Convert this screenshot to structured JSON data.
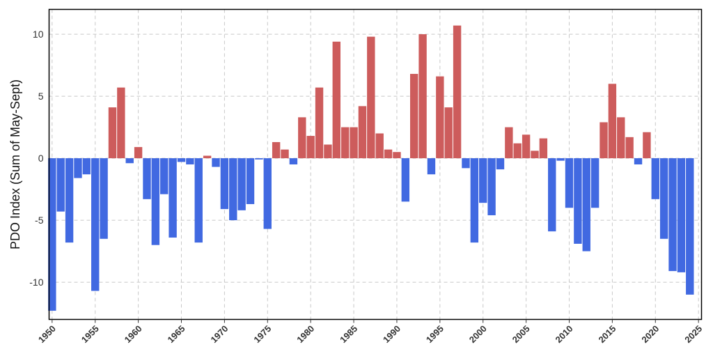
{
  "chart_data": {
    "type": "bar",
    "title": "",
    "xlabel": "",
    "ylabel": "PDO Index (Sum of May-Sept)",
    "xlim": [
      1950,
      2025
    ],
    "ylim": [
      -13,
      12
    ],
    "grid": true,
    "x_ticks": [
      "1950",
      "1955",
      "1960",
      "1965",
      "1970",
      "1975",
      "1980",
      "1985",
      "1990",
      "1995",
      "2000",
      "2005",
      "2010",
      "2015",
      "2020",
      "2025"
    ],
    "y_ticks": [
      "10",
      "5",
      "0",
      "-5",
      "-10"
    ],
    "colors": {
      "positive": "#cd5c5c",
      "negative": "#4169e1"
    },
    "categories": [
      1950,
      1951,
      1952,
      1953,
      1954,
      1955,
      1956,
      1957,
      1958,
      1959,
      1960,
      1961,
      1962,
      1963,
      1964,
      1965,
      1966,
      1967,
      1968,
      1969,
      1970,
      1971,
      1972,
      1973,
      1974,
      1975,
      1976,
      1977,
      1978,
      1979,
      1980,
      1981,
      1982,
      1983,
      1984,
      1985,
      1986,
      1987,
      1988,
      1989,
      1990,
      1991,
      1992,
      1993,
      1994,
      1995,
      1996,
      1997,
      1998,
      1999,
      2000,
      2001,
      2002,
      2003,
      2004,
      2005,
      2006,
      2007,
      2008,
      2009,
      2010,
      2011,
      2012,
      2013,
      2014,
      2015,
      2016,
      2017,
      2018,
      2019,
      2020,
      2021,
      2022,
      2023,
      2024
    ],
    "values": [
      -12.3,
      -4.3,
      -6.8,
      -1.6,
      -1.3,
      -10.7,
      -6.5,
      4.1,
      5.7,
      -0.4,
      0.9,
      -3.3,
      -7.0,
      -2.9,
      -6.4,
      -0.3,
      -0.5,
      -6.8,
      0.2,
      -0.7,
      -4.1,
      -5.0,
      -4.2,
      -3.7,
      -0.1,
      -5.7,
      1.3,
      0.7,
      -0.5,
      3.3,
      1.8,
      5.7,
      1.1,
      9.4,
      2.5,
      2.5,
      4.2,
      9.8,
      2.0,
      0.7,
      0.5,
      -3.5,
      6.8,
      10.0,
      -1.3,
      6.6,
      4.1,
      10.7,
      -0.8,
      -6.8,
      -3.6,
      -4.6,
      -0.9,
      2.5,
      1.2,
      1.9,
      0.6,
      1.6,
      -5.9,
      -0.2,
      -4.0,
      -6.9,
      -7.5,
      -4.0,
      2.9,
      6.0,
      3.3,
      1.7,
      -0.5,
      2.1,
      -3.3,
      -6.5,
      -9.1,
      -9.2,
      -11.0
    ]
  }
}
